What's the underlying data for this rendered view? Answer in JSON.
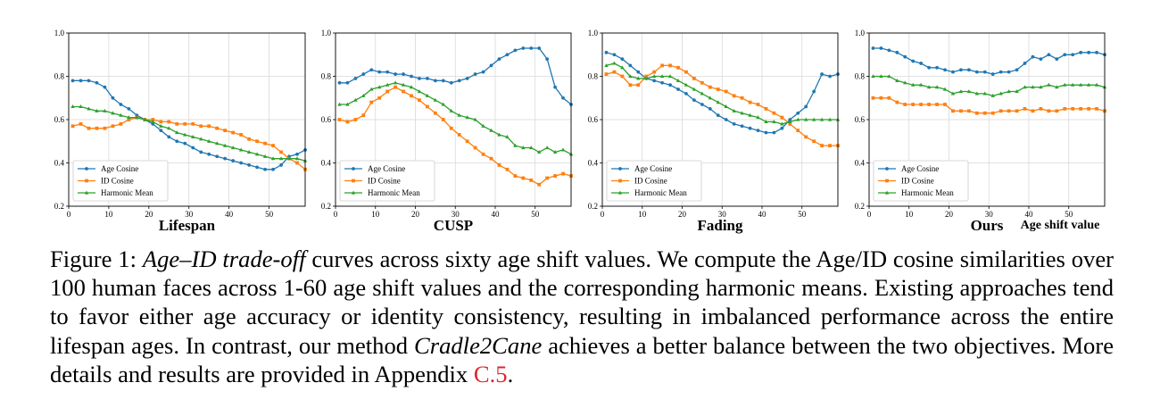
{
  "figure": {
    "legend_labels": [
      "Age Cosine",
      "ID Cosine",
      "Harmonic Mean"
    ],
    "series_colors": {
      "age": "#1f77b4",
      "id": "#ff7f0e",
      "hm": "#2ca02c"
    },
    "xlabel_extra": "Age shift value"
  },
  "caption": {
    "label": "Figure 1: ",
    "italic_term": "Age–ID trade-off",
    "text1": " curves across sixty age shift values. We compute the Age/ID cosine similarities over 100 human faces across 1-60 age shift values and the corresponding harmonic means. Existing approaches tend to favor either age accuracy or identity consistency, resulting in imbalanced performance across the entire lifespan ages. In contrast, our method ",
    "italic_method": "Cradle2Cane",
    "text2": " achieves a better balance between the two objectives. More details and results are provided in Appendix ",
    "ref": "C.5",
    "end": "."
  },
  "chart_data": [
    {
      "type": "line",
      "xlabel": "Lifespan",
      "ylabel": "",
      "xlim": [
        0,
        59
      ],
      "ylim": [
        0.2,
        1.0
      ],
      "xticks": [
        0,
        10,
        20,
        30,
        40,
        50
      ],
      "yticks": [
        0.2,
        0.4,
        0.6,
        0.8,
        1.0
      ],
      "grid": true,
      "legend": "lower-left",
      "series": [
        {
          "name": "Age Cosine",
          "x": [
            1,
            3,
            5,
            7,
            9,
            11,
            13,
            15,
            17,
            19,
            21,
            23,
            25,
            27,
            29,
            31,
            33,
            35,
            37,
            39,
            41,
            43,
            45,
            47,
            49,
            51,
            53,
            55,
            57,
            59
          ],
          "values": [
            0.78,
            0.78,
            0.78,
            0.77,
            0.75,
            0.7,
            0.67,
            0.65,
            0.62,
            0.6,
            0.58,
            0.55,
            0.52,
            0.5,
            0.49,
            0.47,
            0.45,
            0.44,
            0.43,
            0.42,
            0.41,
            0.4,
            0.39,
            0.38,
            0.37,
            0.37,
            0.39,
            0.43,
            0.44,
            0.46
          ]
        },
        {
          "name": "ID Cosine",
          "x": [
            1,
            3,
            5,
            7,
            9,
            11,
            13,
            15,
            17,
            19,
            21,
            23,
            25,
            27,
            29,
            31,
            33,
            35,
            37,
            39,
            41,
            43,
            45,
            47,
            49,
            51,
            53,
            55,
            57,
            59
          ],
          "values": [
            0.57,
            0.58,
            0.56,
            0.56,
            0.56,
            0.57,
            0.58,
            0.6,
            0.61,
            0.6,
            0.6,
            0.59,
            0.59,
            0.58,
            0.58,
            0.58,
            0.57,
            0.57,
            0.56,
            0.55,
            0.54,
            0.53,
            0.51,
            0.5,
            0.49,
            0.48,
            0.45,
            0.42,
            0.4,
            0.37
          ]
        },
        {
          "name": "Harmonic Mean",
          "x": [
            1,
            3,
            5,
            7,
            9,
            11,
            13,
            15,
            17,
            19,
            21,
            23,
            25,
            27,
            29,
            31,
            33,
            35,
            37,
            39,
            41,
            43,
            45,
            47,
            49,
            51,
            53,
            55,
            57,
            59
          ],
          "values": [
            0.66,
            0.66,
            0.65,
            0.64,
            0.64,
            0.63,
            0.62,
            0.61,
            0.61,
            0.6,
            0.59,
            0.57,
            0.56,
            0.54,
            0.53,
            0.52,
            0.51,
            0.5,
            0.49,
            0.48,
            0.47,
            0.46,
            0.45,
            0.44,
            0.43,
            0.42,
            0.42,
            0.42,
            0.42,
            0.41
          ]
        }
      ]
    },
    {
      "type": "line",
      "xlabel": "CUSP",
      "ylabel": "",
      "xlim": [
        0,
        59
      ],
      "ylim": [
        0.2,
        1.0
      ],
      "xticks": [
        0,
        10,
        20,
        30,
        40,
        50
      ],
      "yticks": [
        0.2,
        0.4,
        0.6,
        0.8,
        1.0
      ],
      "grid": true,
      "legend": "lower-left",
      "series": [
        {
          "name": "Age Cosine",
          "x": [
            1,
            3,
            5,
            7,
            9,
            11,
            13,
            15,
            17,
            19,
            21,
            23,
            25,
            27,
            29,
            31,
            33,
            35,
            37,
            39,
            41,
            43,
            45,
            47,
            49,
            51,
            53,
            55,
            57,
            59
          ],
          "values": [
            0.77,
            0.77,
            0.79,
            0.81,
            0.83,
            0.82,
            0.82,
            0.81,
            0.81,
            0.8,
            0.79,
            0.79,
            0.78,
            0.78,
            0.77,
            0.78,
            0.79,
            0.81,
            0.82,
            0.85,
            0.88,
            0.9,
            0.92,
            0.93,
            0.93,
            0.93,
            0.88,
            0.75,
            0.7,
            0.67
          ]
        },
        {
          "name": "ID Cosine",
          "x": [
            1,
            3,
            5,
            7,
            9,
            11,
            13,
            15,
            17,
            19,
            21,
            23,
            25,
            27,
            29,
            31,
            33,
            35,
            37,
            39,
            41,
            43,
            45,
            47,
            49,
            51,
            53,
            55,
            57,
            59
          ],
          "values": [
            0.6,
            0.59,
            0.6,
            0.62,
            0.68,
            0.7,
            0.73,
            0.75,
            0.73,
            0.71,
            0.69,
            0.66,
            0.63,
            0.6,
            0.56,
            0.53,
            0.5,
            0.47,
            0.44,
            0.42,
            0.39,
            0.37,
            0.34,
            0.33,
            0.32,
            0.3,
            0.33,
            0.34,
            0.35,
            0.34
          ]
        },
        {
          "name": "Harmonic Mean",
          "x": [
            1,
            3,
            5,
            7,
            9,
            11,
            13,
            15,
            17,
            19,
            21,
            23,
            25,
            27,
            29,
            31,
            33,
            35,
            37,
            39,
            41,
            43,
            45,
            47,
            49,
            51,
            53,
            55,
            57,
            59
          ],
          "values": [
            0.67,
            0.67,
            0.69,
            0.71,
            0.74,
            0.75,
            0.76,
            0.77,
            0.76,
            0.75,
            0.73,
            0.71,
            0.69,
            0.67,
            0.64,
            0.62,
            0.61,
            0.6,
            0.57,
            0.55,
            0.53,
            0.52,
            0.48,
            0.47,
            0.47,
            0.45,
            0.47,
            0.45,
            0.46,
            0.44
          ]
        }
      ]
    },
    {
      "type": "line",
      "xlabel": "Fading",
      "ylabel": "",
      "xlim": [
        0,
        59
      ],
      "ylim": [
        0.2,
        1.0
      ],
      "xticks": [
        0,
        10,
        20,
        30,
        40,
        50
      ],
      "yticks": [
        0.2,
        0.4,
        0.6,
        0.8,
        1.0
      ],
      "grid": true,
      "legend": "lower-left",
      "series": [
        {
          "name": "Age Cosine",
          "x": [
            1,
            3,
            5,
            7,
            9,
            11,
            13,
            15,
            17,
            19,
            21,
            23,
            25,
            27,
            29,
            31,
            33,
            35,
            37,
            39,
            41,
            43,
            45,
            47,
            49,
            51,
            53,
            55,
            57,
            59
          ],
          "values": [
            0.91,
            0.9,
            0.88,
            0.85,
            0.82,
            0.79,
            0.78,
            0.77,
            0.76,
            0.74,
            0.72,
            0.69,
            0.67,
            0.65,
            0.62,
            0.6,
            0.58,
            0.57,
            0.56,
            0.55,
            0.54,
            0.54,
            0.56,
            0.6,
            0.63,
            0.66,
            0.73,
            0.81,
            0.8,
            0.81
          ]
        },
        {
          "name": "ID Cosine",
          "x": [
            1,
            3,
            5,
            7,
            9,
            11,
            13,
            15,
            17,
            19,
            21,
            23,
            25,
            27,
            29,
            31,
            33,
            35,
            37,
            39,
            41,
            43,
            45,
            47,
            49,
            51,
            53,
            55,
            57,
            59
          ],
          "values": [
            0.81,
            0.82,
            0.8,
            0.76,
            0.76,
            0.8,
            0.82,
            0.85,
            0.85,
            0.84,
            0.82,
            0.79,
            0.77,
            0.75,
            0.74,
            0.73,
            0.71,
            0.7,
            0.68,
            0.67,
            0.65,
            0.63,
            0.61,
            0.58,
            0.55,
            0.52,
            0.5,
            0.48,
            0.48,
            0.48
          ]
        },
        {
          "name": "Harmonic Mean",
          "x": [
            1,
            3,
            5,
            7,
            9,
            11,
            13,
            15,
            17,
            19,
            21,
            23,
            25,
            27,
            29,
            31,
            33,
            35,
            37,
            39,
            41,
            43,
            45,
            47,
            49,
            51,
            53,
            55,
            57,
            59
          ],
          "values": [
            0.85,
            0.86,
            0.84,
            0.8,
            0.79,
            0.79,
            0.8,
            0.8,
            0.8,
            0.78,
            0.76,
            0.74,
            0.72,
            0.7,
            0.68,
            0.66,
            0.64,
            0.63,
            0.62,
            0.61,
            0.59,
            0.59,
            0.58,
            0.59,
            0.6,
            0.6,
            0.6,
            0.6,
            0.6,
            0.6
          ]
        }
      ]
    },
    {
      "type": "line",
      "xlabel": "Ours",
      "ylabel": "",
      "xlim": [
        0,
        59
      ],
      "ylim": [
        0.2,
        1.0
      ],
      "xticks": [
        0,
        10,
        20,
        30,
        40,
        50
      ],
      "yticks": [
        0.2,
        0.4,
        0.6,
        0.8,
        1.0
      ],
      "grid": true,
      "legend": "lower-left",
      "series": [
        {
          "name": "Age Cosine",
          "x": [
            1,
            3,
            5,
            7,
            9,
            11,
            13,
            15,
            17,
            19,
            21,
            23,
            25,
            27,
            29,
            31,
            33,
            35,
            37,
            39,
            41,
            43,
            45,
            47,
            49,
            51,
            53,
            55,
            57,
            59
          ],
          "values": [
            0.93,
            0.93,
            0.92,
            0.91,
            0.89,
            0.87,
            0.86,
            0.84,
            0.84,
            0.83,
            0.82,
            0.83,
            0.83,
            0.82,
            0.82,
            0.81,
            0.82,
            0.82,
            0.83,
            0.86,
            0.89,
            0.88,
            0.9,
            0.88,
            0.9,
            0.9,
            0.91,
            0.91,
            0.91,
            0.9
          ]
        },
        {
          "name": "ID Cosine",
          "x": [
            1,
            3,
            5,
            7,
            9,
            11,
            13,
            15,
            17,
            19,
            21,
            23,
            25,
            27,
            29,
            31,
            33,
            35,
            37,
            39,
            41,
            43,
            45,
            47,
            49,
            51,
            53,
            55,
            57,
            59
          ],
          "values": [
            0.7,
            0.7,
            0.7,
            0.68,
            0.67,
            0.67,
            0.67,
            0.67,
            0.67,
            0.67,
            0.64,
            0.64,
            0.64,
            0.63,
            0.63,
            0.63,
            0.64,
            0.64,
            0.64,
            0.65,
            0.64,
            0.65,
            0.64,
            0.64,
            0.65,
            0.65,
            0.65,
            0.65,
            0.65,
            0.64
          ]
        },
        {
          "name": "Harmonic Mean",
          "x": [
            1,
            3,
            5,
            7,
            9,
            11,
            13,
            15,
            17,
            19,
            21,
            23,
            25,
            27,
            29,
            31,
            33,
            35,
            37,
            39,
            41,
            43,
            45,
            47,
            49,
            51,
            53,
            55,
            57,
            59
          ],
          "values": [
            0.8,
            0.8,
            0.8,
            0.78,
            0.77,
            0.76,
            0.76,
            0.75,
            0.75,
            0.74,
            0.72,
            0.73,
            0.73,
            0.72,
            0.72,
            0.71,
            0.72,
            0.73,
            0.73,
            0.75,
            0.75,
            0.75,
            0.76,
            0.75,
            0.76,
            0.76,
            0.76,
            0.76,
            0.76,
            0.75
          ]
        }
      ]
    }
  ]
}
